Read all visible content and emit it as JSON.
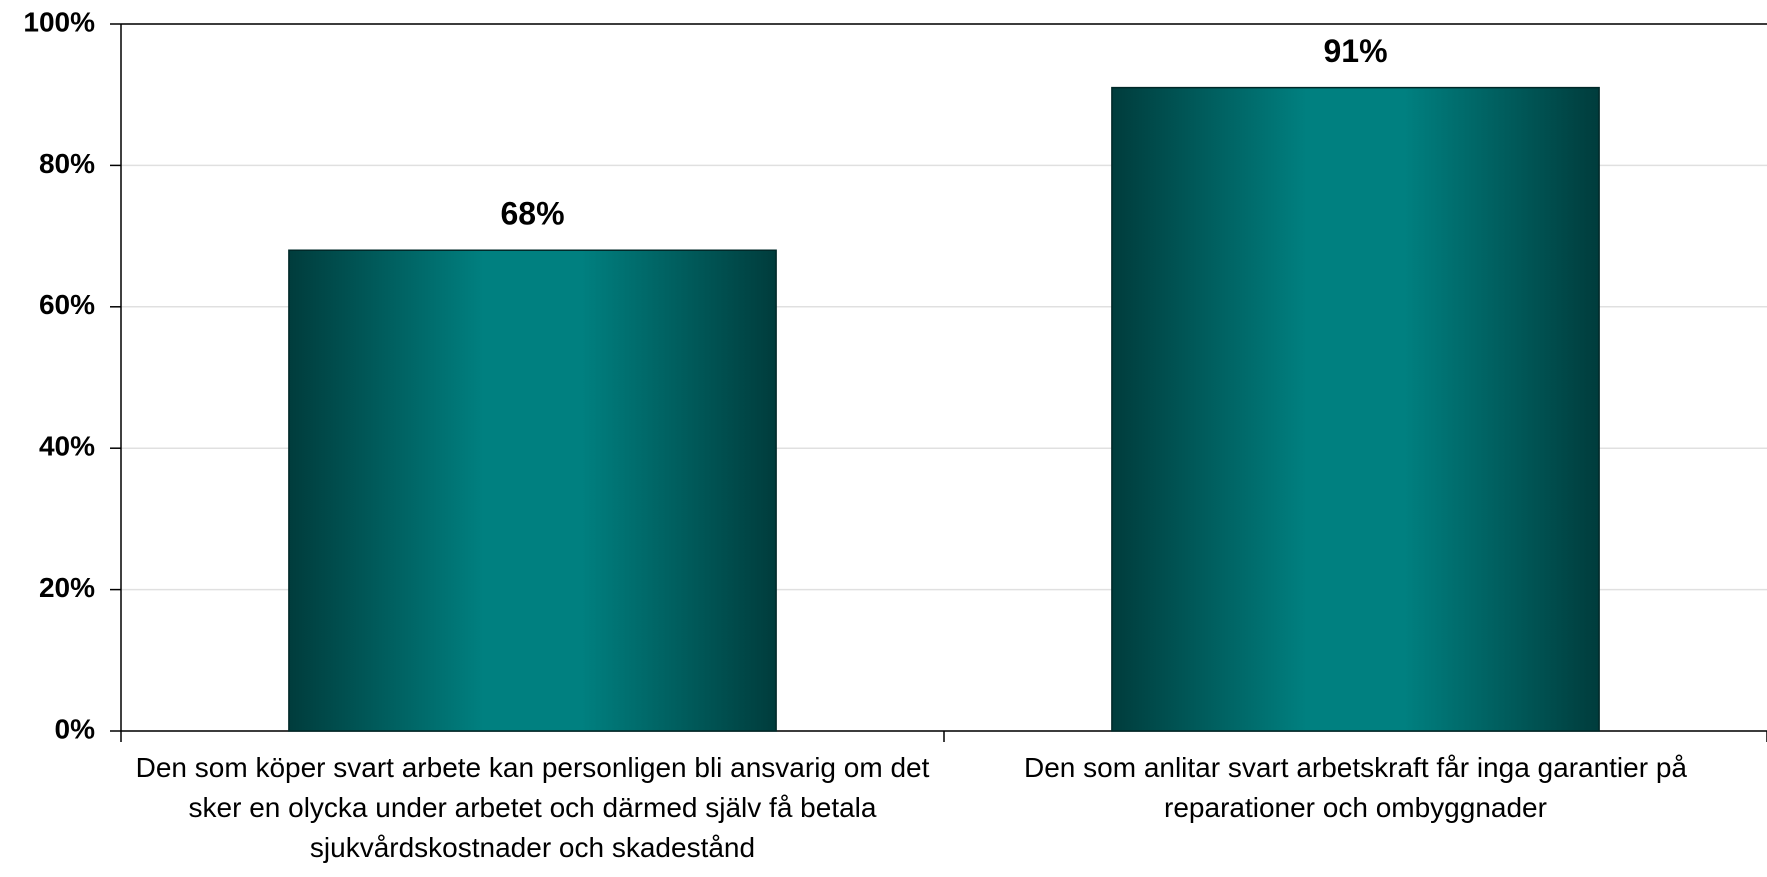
{
  "chart_data": {
    "type": "bar",
    "categories": [
      "Den som köper svart arbete kan personligen bli ansvarig om det sker en olycka under arbetet och därmed själv få betala sjukvårdskostnader och skadestånd",
      "Den som anlitar svart arbetskraft får inga garantier på reparationer och ombyggnader"
    ],
    "values": [
      68,
      91
    ],
    "value_labels": [
      "68%",
      "91%"
    ],
    "color": "#008080",
    "ylim": [
      0,
      100
    ],
    "yticks": [
      {
        "value": 0,
        "label": "0%"
      },
      {
        "value": 20,
        "label": "20%"
      },
      {
        "value": 40,
        "label": "40%"
      },
      {
        "value": 60,
        "label": "60%"
      },
      {
        "value": 80,
        "label": "80%"
      },
      {
        "value": 100,
        "label": "100%"
      }
    ],
    "grid": true
  }
}
